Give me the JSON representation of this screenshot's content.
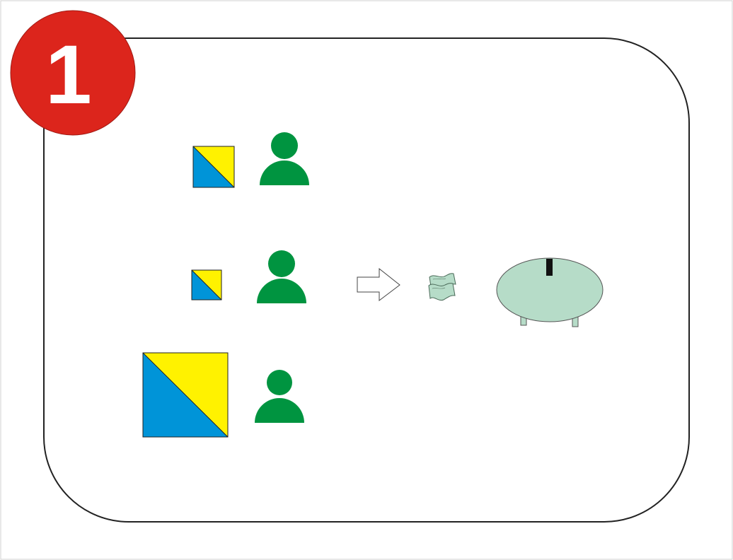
{
  "badge": {
    "number": "1",
    "fill_color": "#dc251c",
    "text_color": "#ffffff"
  },
  "colors": {
    "triangle_blue": "#0094d8",
    "triangle_yellow": "#fff200",
    "person_green": "#009440",
    "piggy_bank_fill": "#b6dcc8",
    "outline": "#222222"
  },
  "rows": [
    {
      "icons": [
        "split-square-icon",
        "person-icon"
      ]
    },
    {
      "icons": [
        "split-square-icon",
        "person-icon",
        "arrow-right-icon",
        "banknote-icon",
        "piggy-bank-icon"
      ]
    },
    {
      "icons": [
        "split-square-icon",
        "person-icon"
      ]
    }
  ]
}
